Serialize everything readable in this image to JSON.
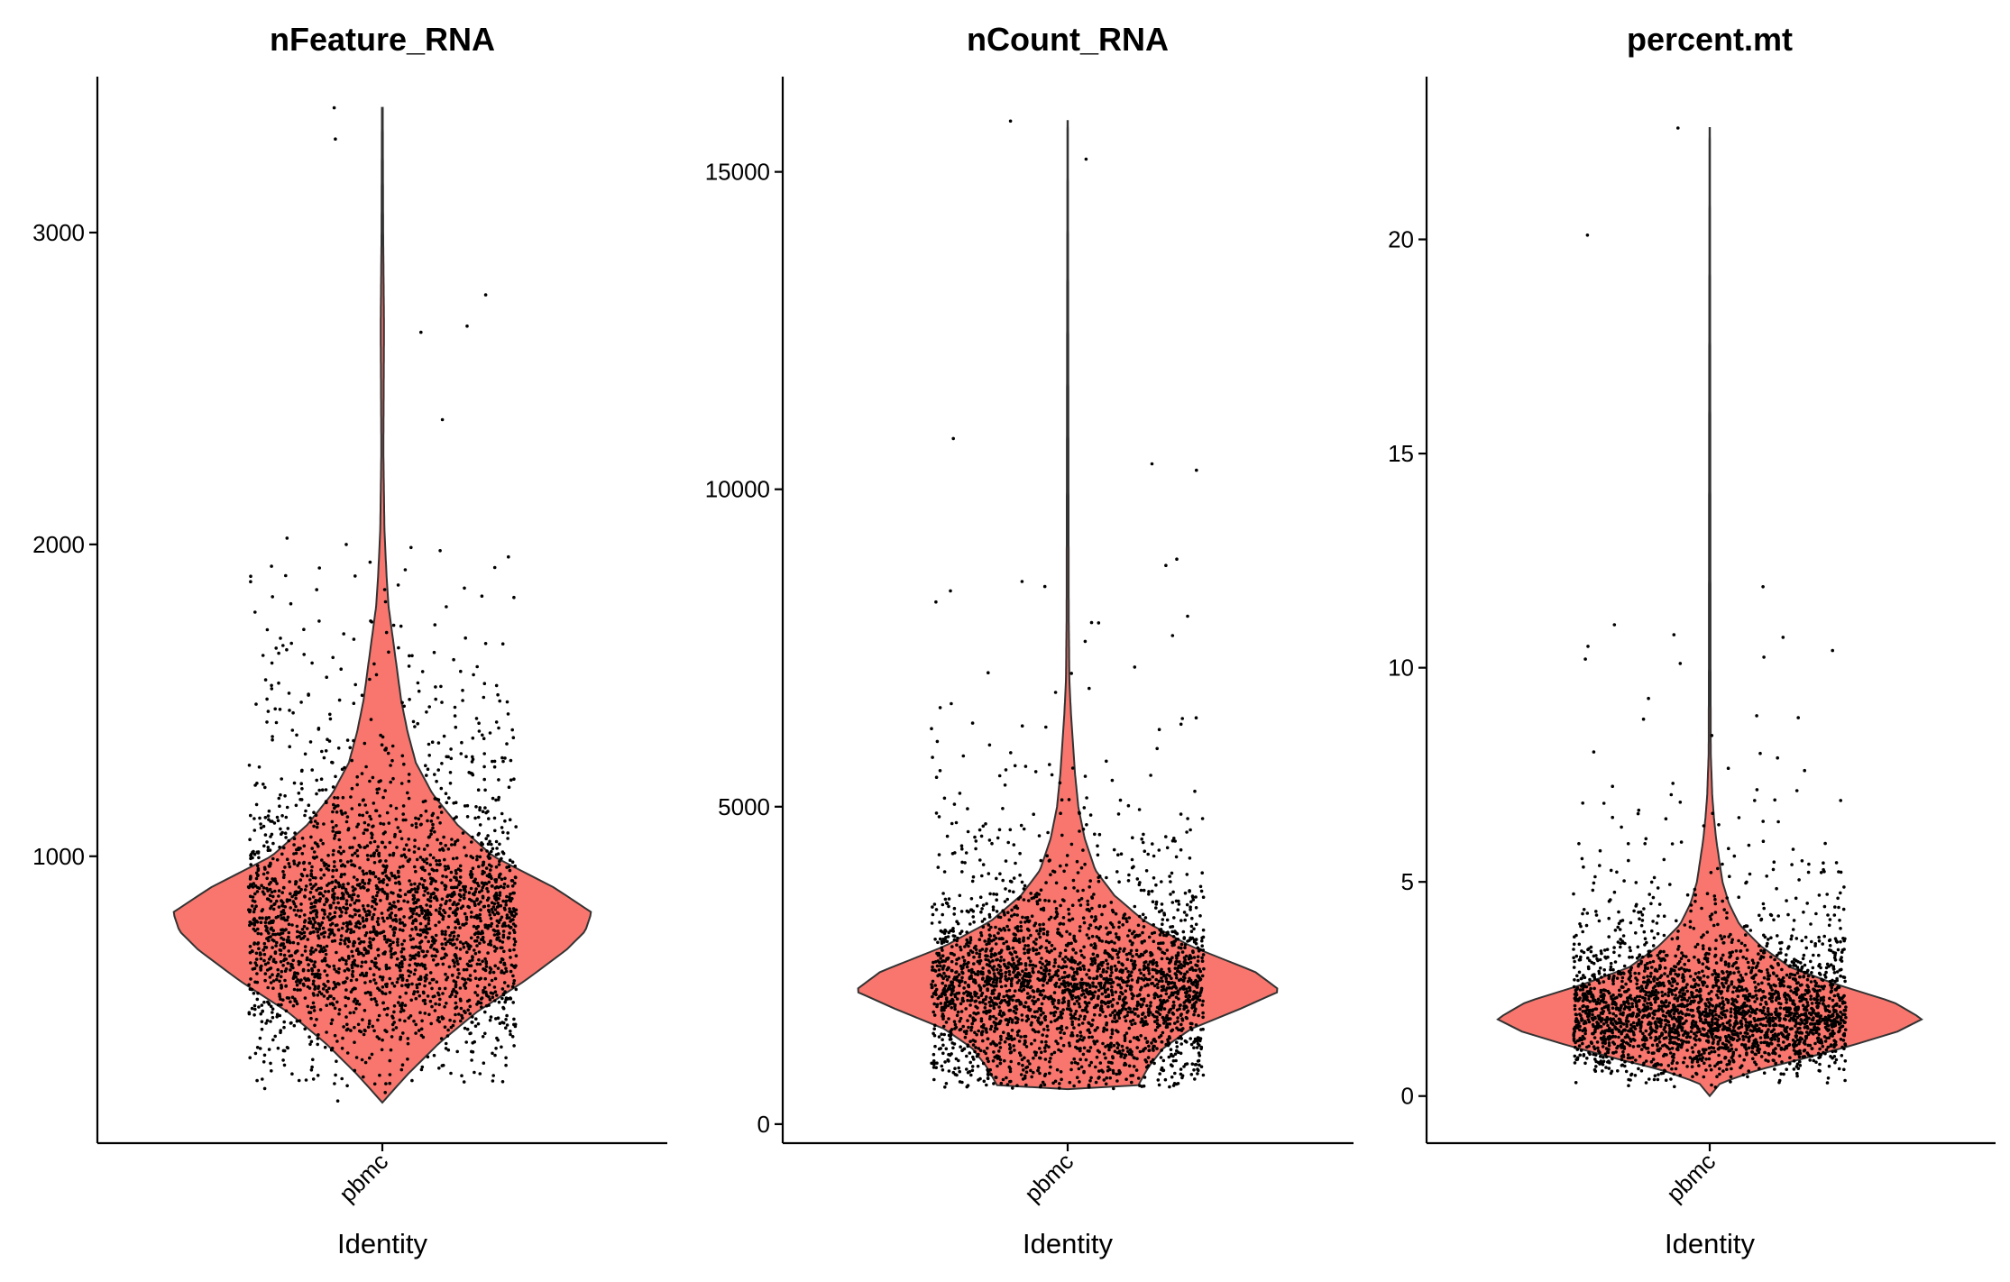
{
  "chart_data": [
    {
      "type": "violin",
      "title": "nFeature_RNA",
      "xlabel": "Identity",
      "ylabel": "",
      "categories": [
        "pbmc"
      ],
      "fill_color": "#F8766D",
      "point_color": "#000000",
      "ylim": [
        80,
        3500
      ],
      "yticks": [
        1000,
        2000,
        3000
      ],
      "n_points": 2700,
      "median": 820,
      "y_min": 210,
      "y_max": 3400,
      "mode": 820,
      "profile": [
        [
          210,
          0.0
        ],
        [
          300,
          0.12
        ],
        [
          400,
          0.27
        ],
        [
          500,
          0.45
        ],
        [
          600,
          0.68
        ],
        [
          700,
          0.88
        ],
        [
          760,
          0.97
        ],
        [
          820,
          1.0
        ],
        [
          900,
          0.82
        ],
        [
          1000,
          0.53
        ],
        [
          1100,
          0.36
        ],
        [
          1200,
          0.24
        ],
        [
          1300,
          0.16
        ],
        [
          1400,
          0.12
        ],
        [
          1500,
          0.09
        ],
        [
          1600,
          0.07
        ],
        [
          1700,
          0.05
        ],
        [
          1800,
          0.03
        ],
        [
          1900,
          0.02
        ],
        [
          2050,
          0.01
        ],
        [
          2300,
          0.005
        ],
        [
          2700,
          0.008
        ],
        [
          3000,
          0.004
        ],
        [
          3400,
          0.002
        ]
      ],
      "outliers": [
        3400,
        3300,
        2800,
        2700,
        2680,
        2400,
        2020,
        2000,
        1990,
        1980,
        1960,
        1930,
        1900,
        1860,
        1830,
        1800
      ]
    },
    {
      "type": "violin",
      "title": "nCount_RNA",
      "xlabel": "Identity",
      "ylabel": "",
      "categories": [
        "pbmc"
      ],
      "fill_color": "#F8766D",
      "point_color": "#000000",
      "ylim": [
        -300,
        16500
      ],
      "yticks": [
        0,
        5000,
        10000,
        15000
      ],
      "n_points": 2700,
      "median": 2200,
      "y_min": 550,
      "y_max": 15800,
      "mode": 2100,
      "profile": [
        [
          550,
          0.0
        ],
        [
          600,
          0.33
        ],
        [
          900,
          0.38
        ],
        [
          1200,
          0.45
        ],
        [
          1500,
          0.58
        ],
        [
          1800,
          0.8
        ],
        [
          2100,
          1.0
        ],
        [
          2400,
          0.88
        ],
        [
          2800,
          0.58
        ],
        [
          3200,
          0.36
        ],
        [
          3600,
          0.22
        ],
        [
          4000,
          0.13
        ],
        [
          4500,
          0.08
        ],
        [
          5000,
          0.05
        ],
        [
          5500,
          0.035
        ],
        [
          6000,
          0.025
        ],
        [
          6500,
          0.015
        ],
        [
          7000,
          0.008
        ],
        [
          8000,
          0.005
        ],
        [
          10000,
          0.004
        ],
        [
          12000,
          0.003
        ],
        [
          15800,
          0.001
        ]
      ],
      "outliers": [
        15800,
        15200,
        10800,
        10400,
        10300,
        8900,
        8400,
        8000,
        7900,
        7200,
        7100,
        6800,
        6400,
        6300
      ]
    },
    {
      "type": "violin",
      "title": "percent.mt",
      "xlabel": "Identity",
      "ylabel": "",
      "categories": [
        "pbmc"
      ],
      "fill_color": "#F8766D",
      "point_color": "#000000",
      "ylim": [
        -1.1,
        23.8
      ],
      "yticks": [
        0,
        5,
        10,
        15,
        20
      ],
      "n_points": 2700,
      "median": 1.9,
      "y_min": 0.0,
      "y_max": 22.6,
      "mode": 1.8,
      "profile": [
        [
          0.0,
          0.0
        ],
        [
          0.3,
          0.05
        ],
        [
          0.6,
          0.22
        ],
        [
          0.9,
          0.46
        ],
        [
          1.2,
          0.68
        ],
        [
          1.5,
          0.88
        ],
        [
          1.8,
          1.0
        ],
        [
          2.2,
          0.86
        ],
        [
          2.6,
          0.6
        ],
        [
          3.0,
          0.38
        ],
        [
          3.5,
          0.24
        ],
        [
          4.0,
          0.14
        ],
        [
          4.5,
          0.09
        ],
        [
          5.0,
          0.06
        ],
        [
          5.5,
          0.045
        ],
        [
          6.0,
          0.03
        ],
        [
          6.5,
          0.02
        ],
        [
          7.0,
          0.012
        ],
        [
          8.0,
          0.005
        ],
        [
          10.0,
          0.004
        ],
        [
          15.0,
          0.003
        ],
        [
          22.6,
          0.001
        ]
      ],
      "outliers": [
        22.6,
        20.1,
        10.5,
        10.4,
        10.2,
        10.1,
        8.8,
        8.0,
        7.6,
        7.3,
        6.9,
        6.6,
        6.5
      ]
    }
  ]
}
